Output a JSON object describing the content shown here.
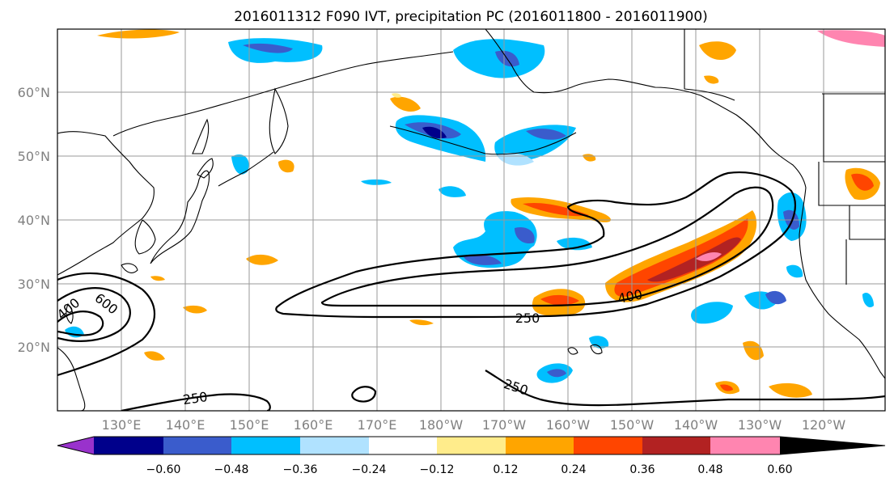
{
  "title": "2016011312 F090 IVT, precipitation PC (2016011800 - 2016011900)",
  "lat_labels": [
    "60°N",
    "50°N",
    "40°N",
    "30°N",
    "20°N"
  ],
  "lon_labels": [
    "130°E",
    "140°E",
    "150°E",
    "160°E",
    "170°E",
    "180°W",
    "170°W",
    "160°W",
    "150°W",
    "140°W",
    "130°W",
    "120°W"
  ],
  "contour_labels": [
    "400",
    "600",
    "250",
    "400",
    "250",
    "250"
  ],
  "colorbar": {
    "colors": [
      "#9932cc",
      "#00008b",
      "#3a5ccc",
      "#00bfff",
      "#b0e2ff",
      "#ffffff",
      "#ffec8b",
      "#ffa500",
      "#ff4500",
      "#b22222",
      "#ff85b0"
    ],
    "tick_labels": [
      "−0.60",
      "−0.48",
      "−0.36",
      "−0.24",
      "−0.12",
      "0.12",
      "0.24",
      "0.36",
      "0.48",
      "0.60"
    ]
  }
}
